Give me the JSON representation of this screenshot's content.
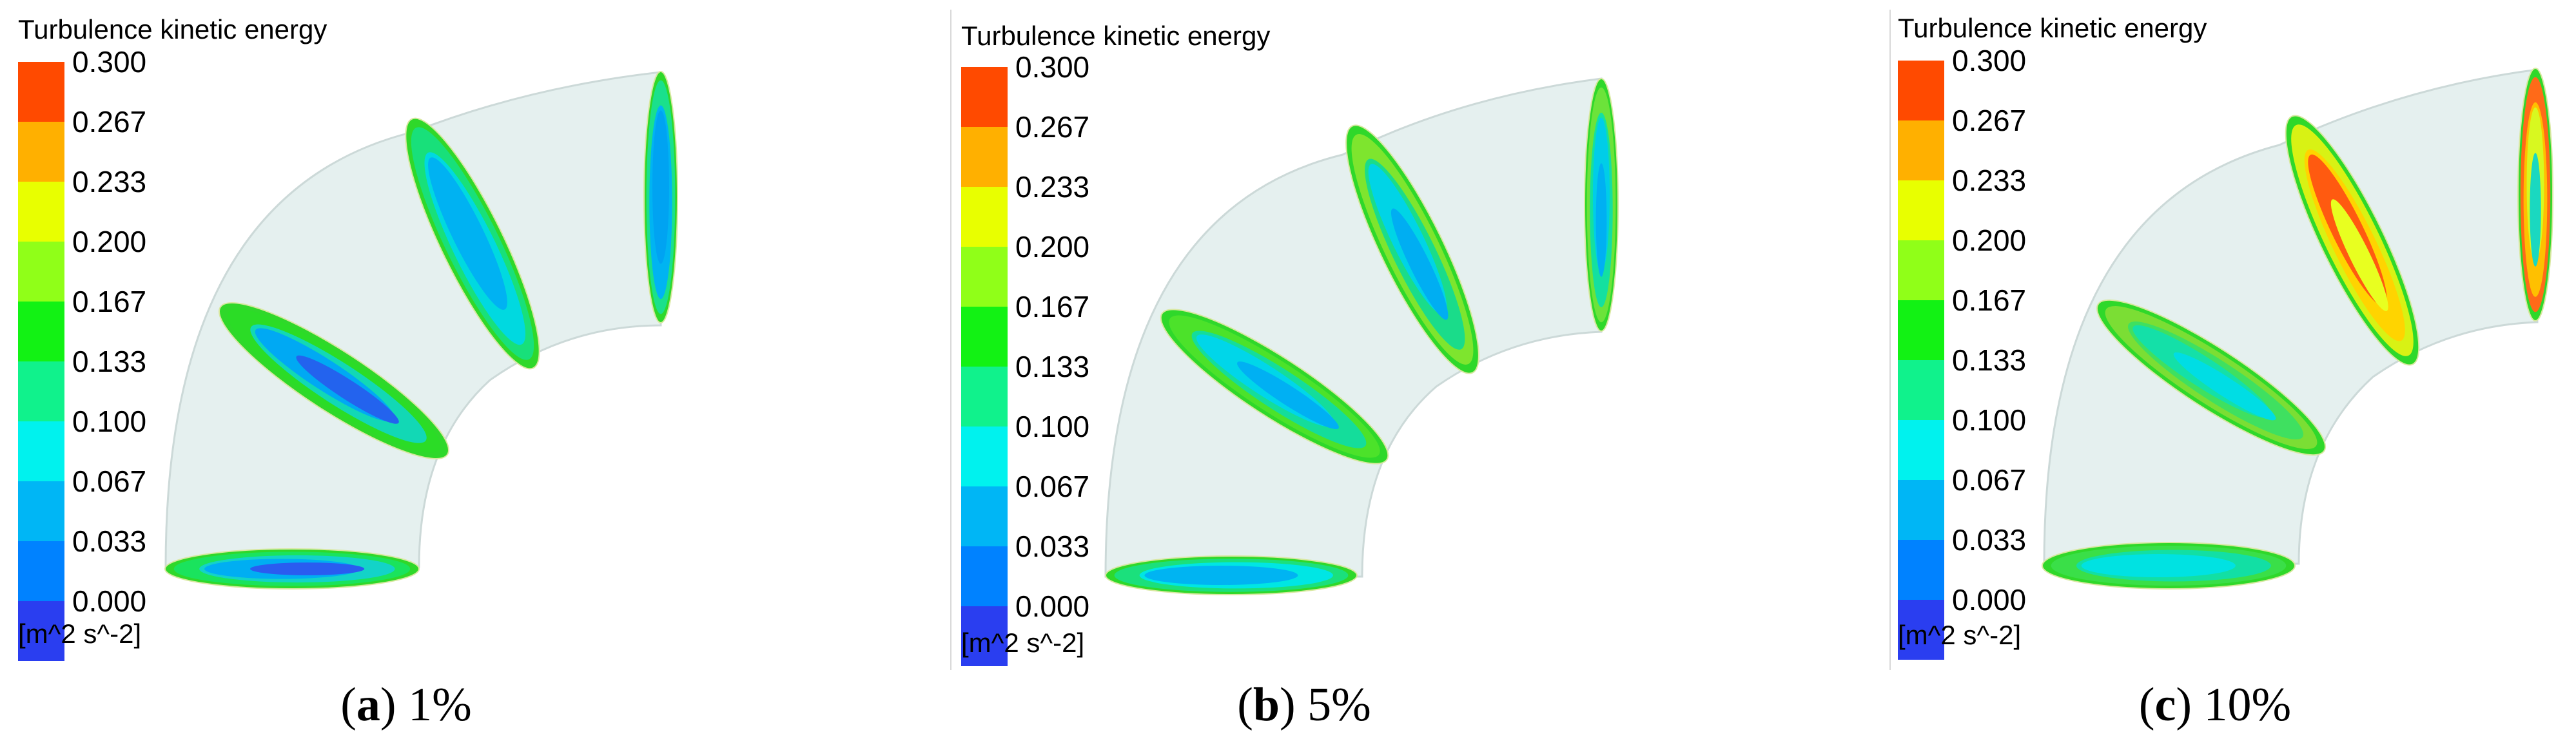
{
  "colors": {
    "pipe_surface": "#e5f0ef",
    "pipe_outline": "#ccd9d8",
    "divider": "#d8d8d8"
  },
  "legend": {
    "title": "Turbulence kinetic energy",
    "units": "[m^2 s^-2]",
    "ticks": [
      "0.300",
      "0.267",
      "0.233",
      "0.200",
      "0.167",
      "0.133",
      "0.100",
      "0.067",
      "0.033",
      "0.000"
    ],
    "bands_top_to_bottom": [
      "#ff4a00",
      "#ffb000",
      "#e8ff00",
      "#90ff18",
      "#12f214",
      "#10f28c",
      "#00f2ee",
      "#00b6f5",
      "#0082ff",
      "#2a3ef0"
    ]
  },
  "panels": [
    {
      "caption_letter": "a",
      "caption_value": "1%",
      "sections": [
        {
          "outer": "#2fd82a",
          "layers": [
            "#1ae35d",
            "#13d3c8",
            "#00aef2",
            "#2a5cf0"
          ]
        },
        {
          "outer": "#2fd82a",
          "layers": [
            "#2bdc26",
            "#12d8b5",
            "#00a9f3",
            "#2363ee"
          ]
        },
        {
          "outer": "#2fd82a",
          "layers": [
            "#18e07a",
            "#00d9e0",
            "#00b2f2"
          ]
        },
        {
          "outer": "#2fd82a",
          "layers": [
            "#1ae08c",
            "#00b4f2",
            "#00a3f2"
          ]
        }
      ]
    },
    {
      "caption_letter": "b",
      "caption_value": "5%",
      "sections": [
        {
          "outer": "#2fd82a",
          "layers": [
            "#1be07c",
            "#00e6e4",
            "#00b4f2"
          ]
        },
        {
          "outer": "#2fd82a",
          "layers": [
            "#4ce22a",
            "#14dd9b",
            "#00d6e9",
            "#00b0f3"
          ]
        },
        {
          "outer": "#2fd82a",
          "layers": [
            "#7ee52e",
            "#1adc8a",
            "#00d4e6",
            "#00aef2"
          ]
        },
        {
          "outer": "#2fd82a",
          "layers": [
            "#6ce33a",
            "#14e0a0",
            "#00cde8",
            "#00b0f2"
          ]
        }
      ]
    },
    {
      "caption_letter": "c",
      "caption_value": "10%",
      "sections": [
        {
          "outer": "#2fd82a",
          "layers": [
            "#3adf48",
            "#12dfa4",
            "#00e2e2"
          ]
        },
        {
          "outer": "#2fd82a",
          "layers": [
            "#7bde34",
            "#3fe060",
            "#14e0a8",
            "#00dde4"
          ]
        },
        {
          "outer": "#2fd82a",
          "layers": [
            "#d8f214",
            "#ffd400",
            "#ff5a10",
            "#e8ff20"
          ]
        },
        {
          "outer": "#2fd82a",
          "layers": [
            "#ff6a18",
            "#ffc000",
            "#d8f820",
            "#1ad8c0"
          ]
        }
      ]
    }
  ]
}
